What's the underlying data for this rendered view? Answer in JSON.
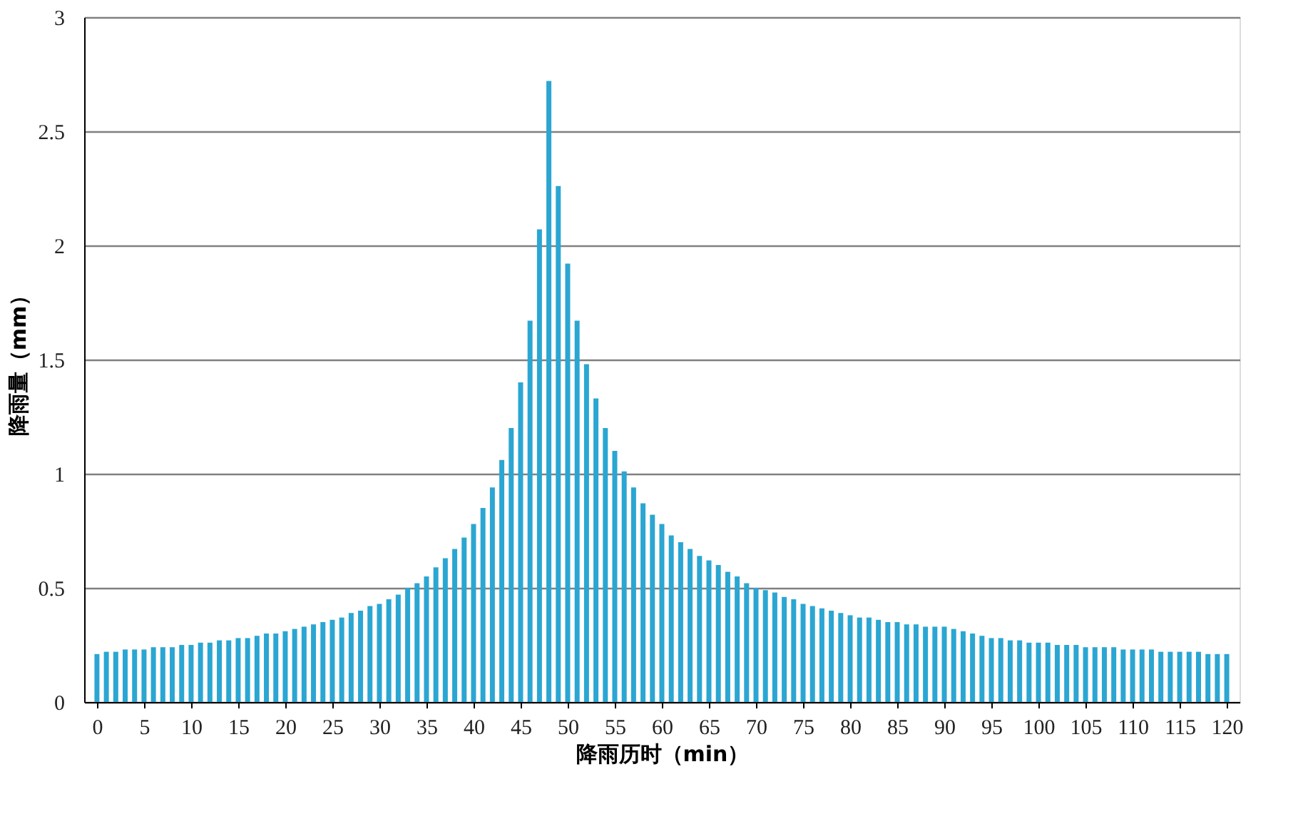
{
  "chart_data": {
    "type": "bar",
    "xlabel": "降雨历时（min）",
    "ylabel": "降雨量（mm）",
    "x": [
      0,
      1,
      2,
      3,
      4,
      5,
      6,
      7,
      8,
      9,
      10,
      11,
      12,
      13,
      14,
      15,
      16,
      17,
      18,
      19,
      20,
      21,
      22,
      23,
      24,
      25,
      26,
      27,
      28,
      29,
      30,
      31,
      32,
      33,
      34,
      35,
      36,
      37,
      38,
      39,
      40,
      41,
      42,
      43,
      44,
      45,
      46,
      47,
      48,
      49,
      50,
      51,
      52,
      53,
      54,
      55,
      56,
      57,
      58,
      59,
      60,
      61,
      62,
      63,
      64,
      65,
      66,
      67,
      68,
      69,
      70,
      71,
      72,
      73,
      74,
      75,
      76,
      77,
      78,
      79,
      80,
      81,
      82,
      83,
      84,
      85,
      86,
      87,
      88,
      89,
      90,
      91,
      92,
      93,
      94,
      95,
      96,
      97,
      98,
      99,
      100,
      101,
      102,
      103,
      104,
      105,
      106,
      107,
      108,
      109,
      110,
      111,
      112,
      113,
      114,
      115,
      116,
      117,
      118,
      119,
      120
    ],
    "values": [
      0.21,
      0.22,
      0.22,
      0.23,
      0.23,
      0.23,
      0.24,
      0.24,
      0.24,
      0.25,
      0.25,
      0.26,
      0.26,
      0.27,
      0.27,
      0.28,
      0.28,
      0.29,
      0.3,
      0.3,
      0.31,
      0.32,
      0.33,
      0.34,
      0.35,
      0.36,
      0.37,
      0.39,
      0.4,
      0.42,
      0.43,
      0.45,
      0.47,
      0.5,
      0.52,
      0.55,
      0.59,
      0.63,
      0.67,
      0.72,
      0.78,
      0.85,
      0.94,
      1.06,
      1.2,
      1.4,
      1.67,
      2.07,
      2.72,
      2.26,
      1.92,
      1.67,
      1.48,
      1.33,
      1.2,
      1.1,
      1.01,
      0.94,
      0.87,
      0.82,
      0.78,
      0.73,
      0.7,
      0.67,
      0.64,
      0.62,
      0.6,
      0.57,
      0.55,
      0.52,
      0.5,
      0.49,
      0.48,
      0.46,
      0.45,
      0.43,
      0.42,
      0.41,
      0.4,
      0.39,
      0.38,
      0.37,
      0.37,
      0.36,
      0.35,
      0.35,
      0.34,
      0.34,
      0.33,
      0.33,
      0.33,
      0.32,
      0.31,
      0.3,
      0.29,
      0.28,
      0.28,
      0.27,
      0.27,
      0.26,
      0.26,
      0.26,
      0.25,
      0.25,
      0.25,
      0.24,
      0.24,
      0.24,
      0.24,
      0.23,
      0.23,
      0.23,
      0.23,
      0.22,
      0.22,
      0.22,
      0.22,
      0.22,
      0.21,
      0.21,
      0.21
    ],
    "color": "#2ba6d2",
    "xlim": [
      -0.6,
      120.6
    ],
    "xticks": [
      0,
      5,
      10,
      15,
      20,
      25,
      30,
      35,
      40,
      45,
      50,
      55,
      60,
      65,
      70,
      75,
      80,
      85,
      90,
      95,
      100,
      105,
      110,
      115,
      120
    ],
    "ylim": [
      0,
      3
    ],
    "yticks": [
      0,
      0.5,
      1,
      1.5,
      2,
      2.5,
      3
    ],
    "grid": "y"
  }
}
